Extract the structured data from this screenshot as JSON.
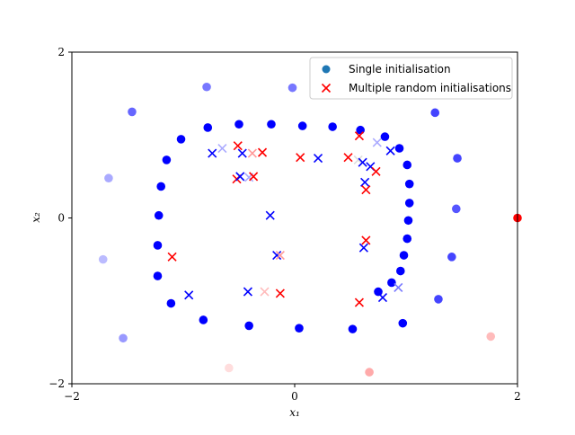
{
  "chart_data": {
    "type": "scatter",
    "title": "",
    "xlabel": "x₁",
    "ylabel": "x₂",
    "xlim": [
      -2,
      2
    ],
    "ylim": [
      -2,
      2
    ],
    "x_ticks": [
      {
        "value": -2,
        "label": "−2"
      },
      {
        "value": 0,
        "label": "0"
      },
      {
        "value": 2,
        "label": "2"
      }
    ],
    "y_ticks": [
      {
        "value": -2,
        "label": "−2"
      },
      {
        "value": 0,
        "label": "0"
      },
      {
        "value": 2,
        "label": "2"
      }
    ],
    "grid": false,
    "legend_position": "top-right",
    "series": [
      {
        "name": "Single initialisation",
        "marker": "circle",
        "legend_color": "#1f77b4",
        "points": [
          {
            "x": -0.79,
            "y": 1.58,
            "color": "#7777ff"
          },
          {
            "x": -0.02,
            "y": 1.57,
            "color": "#7777ff"
          },
          {
            "x": 1.26,
            "y": 1.27,
            "color": "#4444ff"
          },
          {
            "x": -1.46,
            "y": 1.28,
            "color": "#6666ff"
          },
          {
            "x": 1.46,
            "y": 0.72,
            "color": "#4444ff"
          },
          {
            "x": -1.67,
            "y": 0.48,
            "color": "#aaaaff"
          },
          {
            "x": 1.45,
            "y": 0.11,
            "color": "#5555ff"
          },
          {
            "x": 1.41,
            "y": -0.47,
            "color": "#4444ff"
          },
          {
            "x": -1.72,
            "y": -0.5,
            "color": "#bbbbff"
          },
          {
            "x": 1.29,
            "y": -0.98,
            "color": "#4444ff"
          },
          {
            "x": -1.54,
            "y": -1.45,
            "color": "#9999ff"
          },
          {
            "x": -0.59,
            "y": -1.81,
            "color": "#ffdddd"
          },
          {
            "x": 0.67,
            "y": -1.86,
            "color": "#ffaaaa"
          },
          {
            "x": 1.76,
            "y": -1.43,
            "color": "#ffbbbb"
          },
          {
            "x": 2.0,
            "y": 0.0,
            "color": "#ff0000"
          },
          {
            "x": -0.78,
            "y": 1.09,
            "color": "#0000ff"
          },
          {
            "x": -0.5,
            "y": 1.13,
            "color": "#0000ff"
          },
          {
            "x": -0.21,
            "y": 1.13,
            "color": "#0000ff"
          },
          {
            "x": 0.07,
            "y": 1.11,
            "color": "#0000ff"
          },
          {
            "x": 0.34,
            "y": 1.1,
            "color": "#0000ff"
          },
          {
            "x": 0.59,
            "y": 1.06,
            "color": "#0000ff"
          },
          {
            "x": 0.81,
            "y": 0.98,
            "color": "#0000ff"
          },
          {
            "x": 0.94,
            "y": 0.84,
            "color": "#0000ff"
          },
          {
            "x": 1.01,
            "y": 0.64,
            "color": "#0000ff"
          },
          {
            "x": 1.03,
            "y": 0.41,
            "color": "#0000ff"
          },
          {
            "x": 1.03,
            "y": 0.18,
            "color": "#0000ff"
          },
          {
            "x": 1.02,
            "y": -0.03,
            "color": "#0000ff"
          },
          {
            "x": 1.01,
            "y": -0.25,
            "color": "#0000ff"
          },
          {
            "x": 0.98,
            "y": -0.45,
            "color": "#0000ff"
          },
          {
            "x": 0.95,
            "y": -0.64,
            "color": "#0000ff"
          },
          {
            "x": 0.87,
            "y": -0.78,
            "color": "#0000ff"
          },
          {
            "x": 0.75,
            "y": -0.89,
            "color": "#0000ff"
          },
          {
            "x": 0.97,
            "y": -1.27,
            "color": "#0000ff"
          },
          {
            "x": 0.52,
            "y": -1.34,
            "color": "#0000ff"
          },
          {
            "x": 0.04,
            "y": -1.33,
            "color": "#0000ff"
          },
          {
            "x": -0.41,
            "y": -1.3,
            "color": "#0000ff"
          },
          {
            "x": -0.82,
            "y": -1.23,
            "color": "#0000ff"
          },
          {
            "x": -1.11,
            "y": -1.03,
            "color": "#0000ff"
          },
          {
            "x": -1.23,
            "y": -0.7,
            "color": "#0000ff"
          },
          {
            "x": -1.23,
            "y": -0.33,
            "color": "#0000ff"
          },
          {
            "x": -1.22,
            "y": 0.03,
            "color": "#0000ff"
          },
          {
            "x": -1.2,
            "y": 0.38,
            "color": "#0000ff"
          },
          {
            "x": -1.15,
            "y": 0.7,
            "color": "#0000ff"
          },
          {
            "x": -1.02,
            "y": 0.95,
            "color": "#0000ff"
          }
        ]
      },
      {
        "name": "Multiple random initialisations",
        "marker": "x",
        "legend_color": "#ff0000",
        "points": [
          {
            "x": -0.51,
            "y": 0.87,
            "color": "#ff0000"
          },
          {
            "x": -0.65,
            "y": 0.84,
            "color": "#aaaaff"
          },
          {
            "x": -0.74,
            "y": 0.78,
            "color": "#0000ff"
          },
          {
            "x": -0.47,
            "y": 0.78,
            "color": "#0000ff"
          },
          {
            "x": -0.38,
            "y": 0.78,
            "color": "#ff9999"
          },
          {
            "x": -0.29,
            "y": 0.79,
            "color": "#ff0000"
          },
          {
            "x": 0.05,
            "y": 0.73,
            "color": "#ff0000"
          },
          {
            "x": 0.21,
            "y": 0.72,
            "color": "#0000ff"
          },
          {
            "x": 0.48,
            "y": 0.73,
            "color": "#ff0000"
          },
          {
            "x": 0.58,
            "y": 0.99,
            "color": "#ff0000"
          },
          {
            "x": 0.57,
            "y": 0.7,
            "color": "#dddddd"
          },
          {
            "x": 0.61,
            "y": 0.67,
            "color": "#0000ff"
          },
          {
            "x": 0.68,
            "y": 0.62,
            "color": "#0000ff"
          },
          {
            "x": 0.74,
            "y": 0.91,
            "color": "#aaaaff"
          },
          {
            "x": 0.86,
            "y": 0.81,
            "color": "#0000ff"
          },
          {
            "x": 0.73,
            "y": 0.56,
            "color": "#ff0000"
          },
          {
            "x": 0.63,
            "y": 0.43,
            "color": "#0000ff"
          },
          {
            "x": 0.64,
            "y": 0.34,
            "color": "#ff0000"
          },
          {
            "x": -0.52,
            "y": 0.47,
            "color": "#ff0000"
          },
          {
            "x": -0.49,
            "y": 0.5,
            "color": "#0000ff"
          },
          {
            "x": -0.41,
            "y": 0.49,
            "color": "#aaaaff"
          },
          {
            "x": -0.37,
            "y": 0.5,
            "color": "#ff0000"
          },
          {
            "x": -0.22,
            "y": 0.03,
            "color": "#0000ff"
          },
          {
            "x": 0.64,
            "y": -0.27,
            "color": "#ff0000"
          },
          {
            "x": 0.62,
            "y": -0.36,
            "color": "#0000ff"
          },
          {
            "x": -0.16,
            "y": -0.45,
            "color": "#0000ff"
          },
          {
            "x": -0.13,
            "y": -0.45,
            "color": "#ff9999"
          },
          {
            "x": -1.1,
            "y": -0.47,
            "color": "#ff0000"
          },
          {
            "x": -0.95,
            "y": -0.93,
            "color": "#0000ff"
          },
          {
            "x": -0.42,
            "y": -0.89,
            "color": "#0000ff"
          },
          {
            "x": -0.27,
            "y": -0.89,
            "color": "#ffbbbb"
          },
          {
            "x": -0.13,
            "y": -0.91,
            "color": "#ff0000"
          },
          {
            "x": 0.58,
            "y": -1.02,
            "color": "#ff0000"
          },
          {
            "x": 0.79,
            "y": -0.96,
            "color": "#0000ff"
          },
          {
            "x": 0.93,
            "y": -0.84,
            "color": "#7777ff"
          }
        ]
      }
    ]
  }
}
